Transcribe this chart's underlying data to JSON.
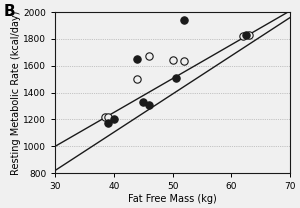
{
  "title_label": "B",
  "xlabel": "Fat Free Mass (kg)",
  "ylabel": "Resting Metabolic Rate (kcal/day)",
  "xlim": [
    30,
    70
  ],
  "ylim": [
    800,
    2000
  ],
  "xticks": [
    30,
    40,
    50,
    60,
    70
  ],
  "yticks": [
    800,
    1000,
    1200,
    1400,
    1600,
    1800,
    2000
  ],
  "open_circles": [
    [
      38.5,
      1215
    ],
    [
      39,
      1220
    ],
    [
      44,
      1500
    ],
    [
      46,
      1670
    ],
    [
      50,
      1640
    ],
    [
      52,
      1635
    ],
    [
      62,
      1825
    ],
    [
      63,
      1830
    ]
  ],
  "filled_circles": [
    [
      39,
      1170
    ],
    [
      40,
      1205
    ],
    [
      44,
      1650
    ],
    [
      45,
      1330
    ],
    [
      46,
      1310
    ],
    [
      50.5,
      1510
    ],
    [
      52,
      1940
    ],
    [
      62.5,
      1830
    ]
  ],
  "line1_x": [
    30,
    70
  ],
  "line1_y": [
    1000,
    2010
  ],
  "line2_x": [
    30,
    70
  ],
  "line2_y": [
    820,
    1960
  ],
  "bg_color": "#f0f0f0",
  "dot_color_filled": "#1a1a1a",
  "dot_color_open": "#f0f0f0",
  "dot_edge_color": "#1a1a1a",
  "line_color": "#1a1a1a",
  "grid_color": "#999999",
  "dot_size": 28,
  "linewidth": 1.0,
  "tick_fontsize": 6.5,
  "label_fontsize": 7.0
}
